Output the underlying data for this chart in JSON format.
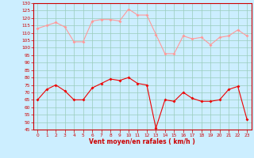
{
  "x": [
    0,
    1,
    2,
    3,
    4,
    5,
    6,
    7,
    8,
    9,
    10,
    11,
    12,
    13,
    14,
    15,
    16,
    17,
    18,
    19,
    20,
    21,
    22,
    23
  ],
  "wind_avg": [
    65,
    72,
    75,
    71,
    65,
    65,
    73,
    76,
    79,
    78,
    80,
    76,
    75,
    46,
    65,
    64,
    70,
    66,
    64,
    64,
    65,
    72,
    74,
    52
  ],
  "wind_gust": [
    113,
    115,
    117,
    114,
    104,
    104,
    118,
    119,
    119,
    118,
    126,
    122,
    122,
    109,
    96,
    96,
    108,
    106,
    107,
    102,
    107,
    108,
    112,
    108
  ],
  "bg_color": "#cceeff",
  "grid_color": "#99ccbb",
  "avg_color": "#ee0000",
  "gust_color": "#ff9999",
  "xlabel": "Vent moyen/en rafales ( km/h )",
  "xlabel_color": "#cc0000",
  "tick_color": "#cc0000",
  "spine_color": "#cc0000",
  "ylim_min": 45,
  "ylim_max": 130,
  "yticks": [
    45,
    50,
    55,
    60,
    65,
    70,
    75,
    80,
    85,
    90,
    95,
    100,
    105,
    110,
    115,
    120,
    125,
    130
  ],
  "xticks": [
    0,
    1,
    2,
    3,
    4,
    5,
    6,
    7,
    8,
    9,
    10,
    11,
    12,
    13,
    14,
    15,
    16,
    17,
    18,
    19,
    20,
    21,
    22,
    23
  ]
}
